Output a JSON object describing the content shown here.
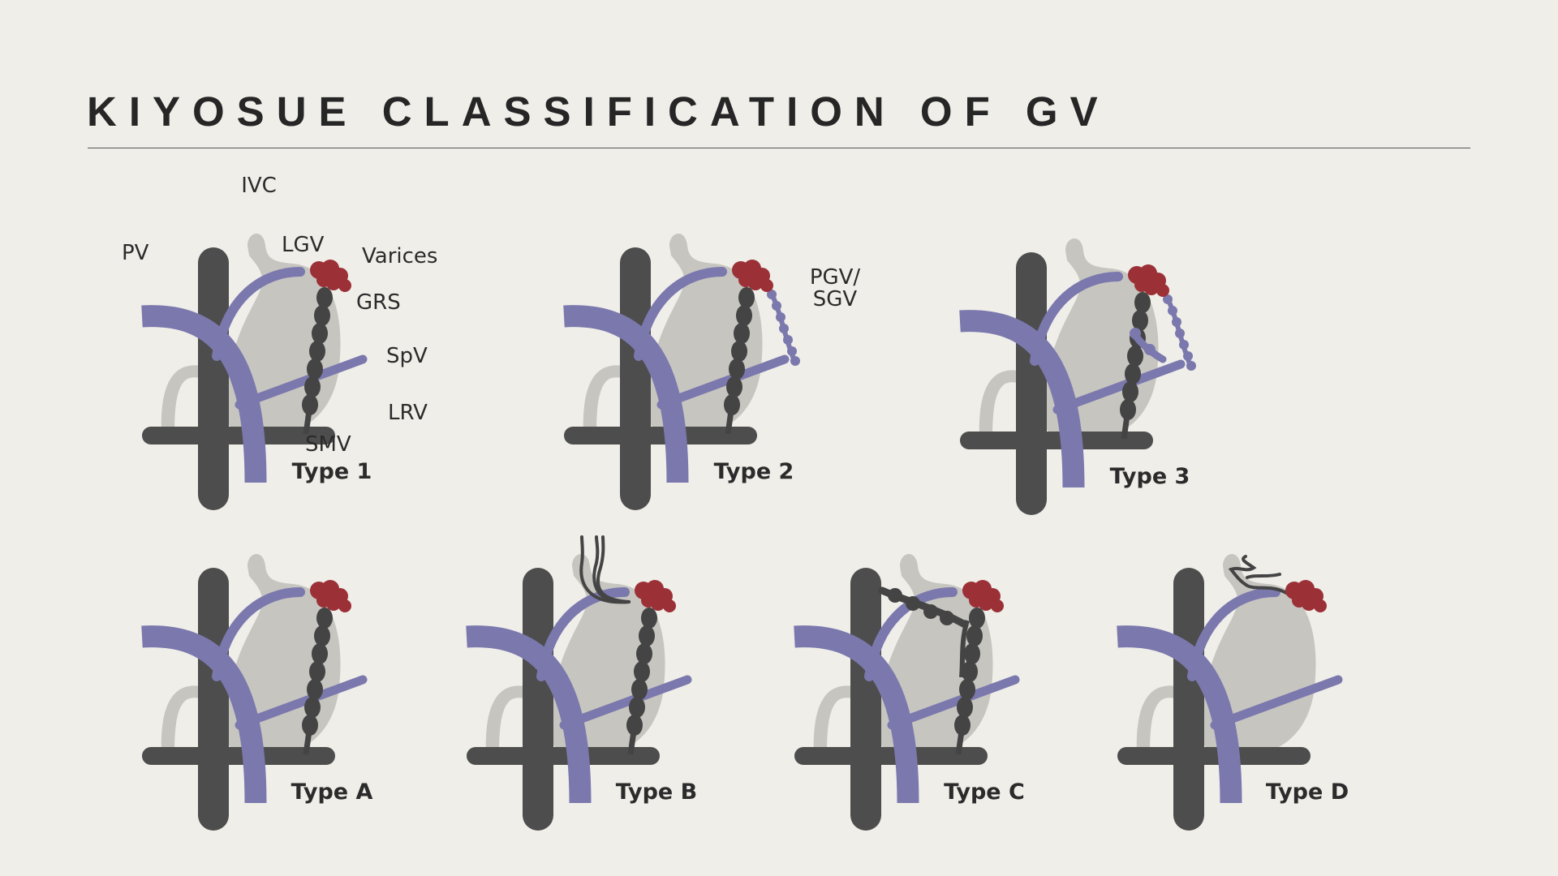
{
  "title": "KIYOSUE CLASSIFICATION OF GV",
  "colors": {
    "background": "#efeee9",
    "vessel_dark": "#4d4d4d",
    "portal_purple": "#7b78ad",
    "stomach": "#c6c5c0",
    "varices": "#9b3036"
  },
  "labels": {
    "ivc": "IVC",
    "pv": "PV",
    "lgv": "LGV",
    "varices": "Varices",
    "grs": "GRS",
    "spv": "SpV",
    "lrv": "LRV",
    "smv": "SMV",
    "pgv_line1": "PGV/",
    "pgv_line2": "SGV"
  },
  "panels": [
    {
      "type_label": "Type 1",
      "variant": "1"
    },
    {
      "type_label": "Type 2",
      "variant": "2"
    },
    {
      "type_label": "Type 3",
      "variant": "3"
    },
    {
      "type_label": "Type A",
      "variant": "A"
    },
    {
      "type_label": "Type B",
      "variant": "B"
    },
    {
      "type_label": "Type C",
      "variant": "C"
    },
    {
      "type_label": "Type D",
      "variant": "D"
    }
  ]
}
